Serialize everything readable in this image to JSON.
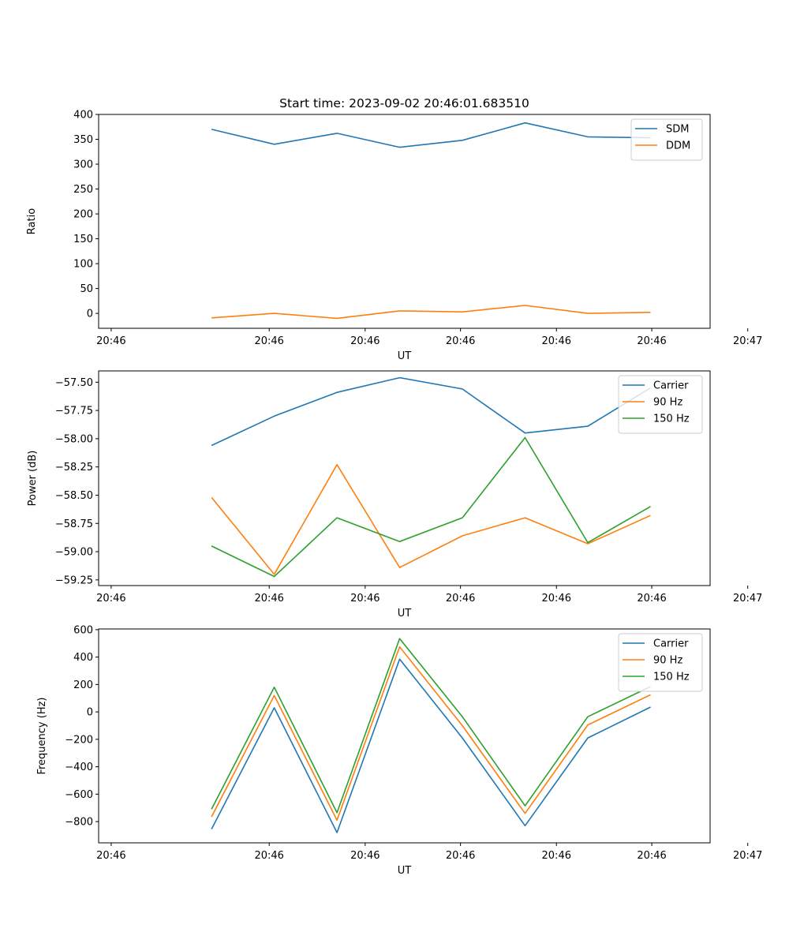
{
  "title": "Start time: 2023-09-02 20:46:01.683510",
  "chart_data": [
    {
      "type": "line",
      "title": "Start time: 2023-09-02 20:46:01.683510",
      "xlabel": "UT",
      "ylabel": "Ratio",
      "x": [
        1,
        2,
        3,
        4,
        5,
        6,
        7,
        8
      ],
      "xlim": [
        -0.8,
        8.95
      ],
      "x_ticks": [
        {
          "x": -0.6,
          "label": "20:46"
        },
        {
          "x": 1.92,
          "label": "20:46"
        },
        {
          "x": 3.45,
          "label": "20:46"
        },
        {
          "x": 4.97,
          "label": "20:46"
        },
        {
          "x": 6.5,
          "label": "20:46"
        },
        {
          "x": 8.02,
          "label": "20:46"
        },
        {
          "x": 9.55,
          "label": "20:47"
        }
      ],
      "ylim": [
        -30,
        400
      ],
      "y_ticks": [
        0,
        50,
        100,
        150,
        200,
        250,
        300,
        350,
        400
      ],
      "legend": "top-right",
      "series": [
        {
          "name": "SDM",
          "color": "#1f77b4",
          "values": [
            370,
            340,
            362,
            334,
            348,
            383,
            355,
            353
          ]
        },
        {
          "name": "DDM",
          "color": "#ff7f0e",
          "values": [
            -9,
            0,
            -10,
            5,
            3,
            16,
            0,
            2
          ]
        }
      ]
    },
    {
      "type": "line",
      "xlabel": "UT",
      "ylabel": "Power (dB)",
      "x": [
        1,
        2,
        3,
        4,
        5,
        6,
        7,
        8
      ],
      "xlim": [
        -0.8,
        8.95
      ],
      "x_ticks": [
        {
          "x": -0.6,
          "label": "20:46"
        },
        {
          "x": 1.92,
          "label": "20:46"
        },
        {
          "x": 3.45,
          "label": "20:46"
        },
        {
          "x": 4.97,
          "label": "20:46"
        },
        {
          "x": 6.5,
          "label": "20:46"
        },
        {
          "x": 8.02,
          "label": "20:46"
        },
        {
          "x": 9.55,
          "label": "20:47"
        }
      ],
      "ylim": [
        -59.3,
        -57.4
      ],
      "y_ticks": [
        -59.25,
        -59.0,
        -58.75,
        -58.5,
        -58.25,
        -58.0,
        -57.75,
        -57.5
      ],
      "y_tick_labels": [
        "−59.25",
        "−59.00",
        "−58.75",
        "−58.50",
        "−58.25",
        "−58.00",
        "−57.75",
        "−57.50"
      ],
      "legend": "top-right",
      "series": [
        {
          "name": "Carrier",
          "color": "#1f77b4",
          "values": [
            -58.06,
            -57.8,
            -57.59,
            -57.46,
            -57.56,
            -57.95,
            -57.89,
            -57.55
          ]
        },
        {
          "name": "90 Hz",
          "color": "#ff7f0e",
          "values": [
            -58.52,
            -59.2,
            -58.23,
            -59.14,
            -58.86,
            -58.7,
            -58.93,
            -58.68
          ]
        },
        {
          "name": "150 Hz",
          "color": "#2ca02c",
          "values": [
            -58.95,
            -59.22,
            -58.7,
            -58.91,
            -58.7,
            -57.99,
            -58.92,
            -58.6
          ]
        }
      ]
    },
    {
      "type": "line",
      "xlabel": "UT",
      "ylabel": "Frequency (Hz)",
      "x": [
        1,
        2,
        3,
        4,
        5,
        6,
        7,
        8
      ],
      "xlim": [
        -0.8,
        8.95
      ],
      "x_ticks": [
        {
          "x": -0.6,
          "label": "20:46"
        },
        {
          "x": 1.92,
          "label": "20:46"
        },
        {
          "x": 3.45,
          "label": "20:46"
        },
        {
          "x": 4.97,
          "label": "20:46"
        },
        {
          "x": 6.5,
          "label": "20:46"
        },
        {
          "x": 8.02,
          "label": "20:46"
        },
        {
          "x": 9.55,
          "label": "20:47"
        }
      ],
      "ylim": [
        -955,
        605
      ],
      "y_ticks": [
        -800,
        -600,
        -400,
        -200,
        0,
        200,
        400,
        600
      ],
      "y_tick_labels": [
        "−800",
        "−600",
        "−400",
        "−200",
        "0",
        "200",
        "400",
        "600"
      ],
      "legend": "top-right",
      "series": [
        {
          "name": "Carrier",
          "color": "#1f77b4",
          "values": [
            -855,
            30,
            -880,
            385,
            -190,
            -830,
            -190,
            35
          ]
        },
        {
          "name": "90 Hz",
          "color": "#ff7f0e",
          "values": [
            -765,
            120,
            -790,
            475,
            -100,
            -740,
            -95,
            125
          ]
        },
        {
          "name": "150 Hz",
          "color": "#2ca02c",
          "values": [
            -710,
            180,
            -735,
            535,
            -35,
            -685,
            -35,
            185
          ]
        }
      ]
    }
  ]
}
